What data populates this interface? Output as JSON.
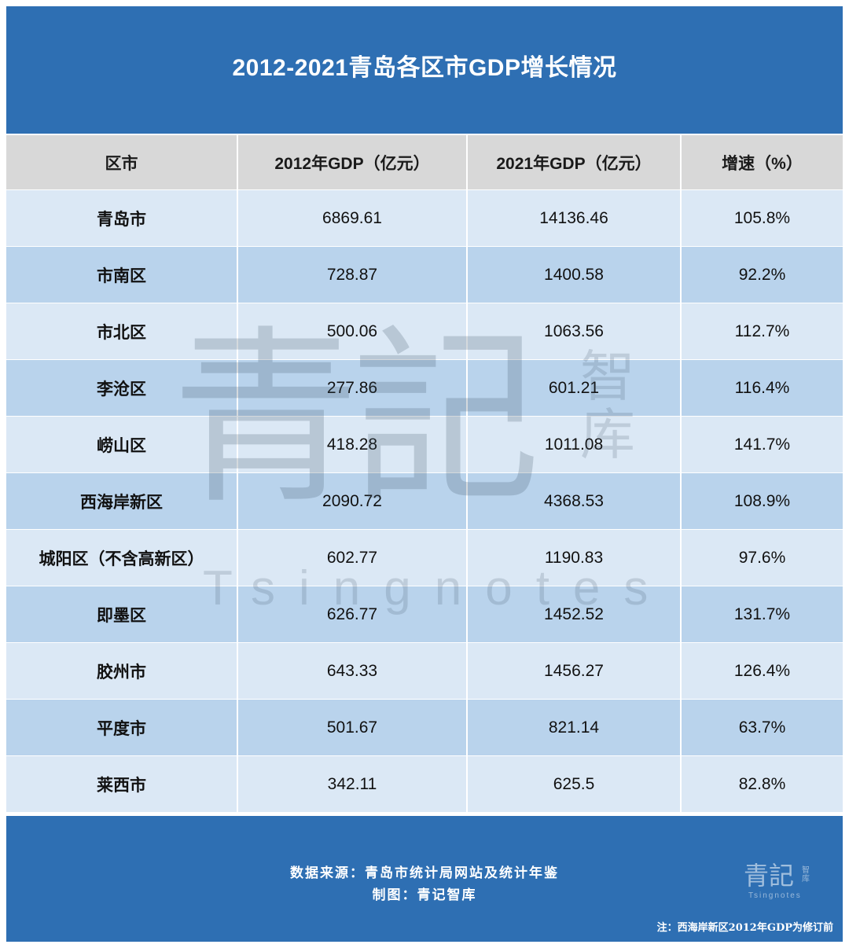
{
  "title": "2012-2021青岛各区市GDP增长情况",
  "table": {
    "headers": [
      "区市",
      "2012年GDP（亿元）",
      "2021年GDP（亿元）",
      "增速（%）"
    ],
    "rows": [
      [
        "青岛市",
        "6869.61",
        "14136.46",
        "105.8%"
      ],
      [
        "市南区",
        "728.87",
        "1400.58",
        "92.2%"
      ],
      [
        "市北区",
        "500.06",
        "1063.56",
        "112.7%"
      ],
      [
        "李沧区",
        "277.86",
        "601.21",
        "116.4%"
      ],
      [
        "崂山区",
        "418.28",
        "1011.08",
        "141.7%"
      ],
      [
        "西海岸新区",
        "2090.72",
        "4368.53",
        "108.9%"
      ],
      [
        "城阳区（不含高新区）",
        "602.77",
        "1190.83",
        "97.6%"
      ],
      [
        "即墨区",
        "626.77",
        "1452.52",
        "131.7%"
      ],
      [
        "胶州市",
        "643.33",
        "1456.27",
        "126.4%"
      ],
      [
        "平度市",
        "501.67",
        "821.14",
        "63.7%"
      ],
      [
        "莱西市",
        "342.11",
        "625.5",
        "82.8%"
      ]
    ]
  },
  "watermark": {
    "main": "青記",
    "side": "智库",
    "latin": "Tsingnotes"
  },
  "footer": {
    "source": "数据来源：青岛市统计局网站及统计年鉴",
    "credit": "制图：青记智库",
    "note": "注：西海岸新区2012年GDP为修订前",
    "logo_main": "青記",
    "logo_side": "智库",
    "logo_latin": "Tsingnotes"
  },
  "colors": {
    "banner": "#2e6fb3",
    "header_row": "#d8d8d8",
    "row_light": "#dbe8f5",
    "row_dark": "#b9d3ec"
  }
}
